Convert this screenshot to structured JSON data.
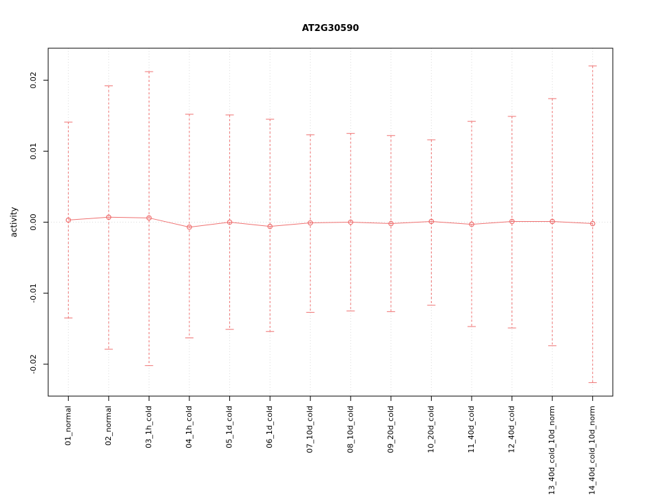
{
  "chart_data": {
    "type": "scatter",
    "subtype": "means-with-error-bars",
    "title": "AT2G30590",
    "xlabel": "",
    "ylabel": "activity",
    "categories": [
      "01_normal",
      "02_normal",
      "03_1h_cold",
      "04_1h_cold",
      "05_1d_cold",
      "06_1d_cold",
      "07_10d_cold",
      "08_10d_cold",
      "09_20d_cold",
      "10_20d_cold",
      "11_40d_cold",
      "12_40d_cold",
      "13_40d_cold_10d_norm",
      "14_40d_cold_10d_norm"
    ],
    "series": [
      {
        "name": "mean",
        "values": [
          0.0003,
          0.0007,
          0.0006,
          -0.0007,
          0.0,
          -0.0006,
          -0.0001,
          0.0,
          -0.0002,
          0.0001,
          -0.0003,
          0.0001,
          0.0001,
          -0.0002
        ]
      },
      {
        "name": "upper",
        "values": [
          0.0141,
          0.0192,
          0.0212,
          0.0152,
          0.0151,
          0.0145,
          0.0123,
          0.0125,
          0.0122,
          0.0116,
          0.0142,
          0.0149,
          0.0174,
          0.022
        ]
      },
      {
        "name": "lower",
        "values": [
          -0.0135,
          -0.0179,
          -0.0202,
          -0.0163,
          -0.0151,
          -0.0154,
          -0.0127,
          -0.0125,
          -0.0126,
          -0.0117,
          -0.0147,
          -0.0149,
          -0.0174,
          -0.0226
        ]
      }
    ],
    "yticks": [
      -0.02,
      -0.01,
      0.0,
      0.01,
      0.02
    ],
    "ylim": [
      -0.0245,
      0.0245
    ],
    "grid": "dotted vertical line at each category, dotted horizontal line at y=0",
    "legend": "none",
    "series_color": "#ef7070",
    "grid_color": "#d9d9d9",
    "axis_color": "#000000"
  }
}
